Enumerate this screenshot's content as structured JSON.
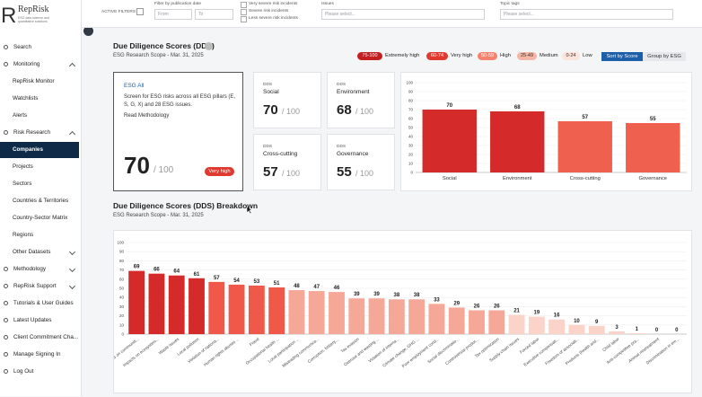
{
  "sidebar": {
    "logo": "RepRisk",
    "tagline": "ESG data science and quantitative solutions",
    "items": [
      {
        "label": "Search"
      },
      {
        "label": "Monitoring",
        "toggle": "up"
      },
      {
        "label": "RepRisk Monitor",
        "indent": true
      },
      {
        "label": "Watchlists",
        "indent": true
      },
      {
        "label": "Alerts",
        "indent": true
      },
      {
        "label": "Risk Research",
        "toggle": "up"
      },
      {
        "label": "Companies",
        "indent": true,
        "active": true
      },
      {
        "label": "Projects",
        "indent": true
      },
      {
        "label": "Sectors",
        "indent": true
      },
      {
        "label": "Countries & Territories",
        "indent": true
      },
      {
        "label": "Country-Sector Matrix",
        "indent": true
      },
      {
        "label": "Regions",
        "indent": true
      },
      {
        "label": "Other Datasets",
        "indent": true,
        "toggle": "down"
      },
      {
        "label": "Methodology",
        "toggle": "down"
      },
      {
        "label": "RepRisk Support",
        "toggle": "down"
      },
      {
        "label": "Tutorials & User Guides"
      },
      {
        "label": "Latest Updates"
      },
      {
        "label": "Client Commitment Cha..."
      },
      {
        "label": "Manage Signing In"
      },
      {
        "label": "Log Out"
      }
    ]
  },
  "filters": {
    "active": "ACTIVE FILTERS",
    "date_label": "Filter by publication date",
    "from": "From",
    "to": "To",
    "checkboxes": [
      "Very severe risk incidents",
      "Severe risk incidents",
      "Less severe risk incidents"
    ],
    "issues_label": "Issues",
    "issues_placeholder": "Please select...",
    "tags_label": "Topic tags",
    "tags_placeholder": "Please select..."
  },
  "main": {
    "title": "Due Diligence Scores (DDS)",
    "subtitle": "ESG Research Scope - Mar. 31, 2025",
    "legend": [
      {
        "range": "75-100",
        "label": "Extremely high",
        "color": "#c41e1e",
        "text_color": "#ffffff"
      },
      {
        "range": "60-74",
        "label": "Very high",
        "color": "#e0392f",
        "text_color": "#ffffff"
      },
      {
        "range": "50-59",
        "label": "High",
        "color": "#f4826e",
        "text_color": "#ffffff"
      },
      {
        "range": "25-49",
        "label": "Medium",
        "color": "#f6b6a6",
        "text_color": "#333333"
      },
      {
        "range": "0-24",
        "label": "Low",
        "color": "#fde3da",
        "text_color": "#333333"
      }
    ],
    "sort_button": "Sort by Score",
    "group_button": "Group by ESG",
    "esg_card": {
      "title": "ESG All",
      "description": "Screen for ESG risks across all ESG pillars (E, S, G, X) and 28 ESG issues.",
      "link": "Read Methodology",
      "score": 70,
      "max": "/ 100",
      "badge": "Very high"
    },
    "score_cards": [
      {
        "tag": "DDS",
        "name": "Social",
        "score": 70,
        "max": "/ 100"
      },
      {
        "tag": "DDS",
        "name": "Environment",
        "score": 68,
        "max": "/ 100"
      },
      {
        "tag": "DDS",
        "name": "Cross-cutting",
        "score": 57,
        "max": "/ 100"
      },
      {
        "tag": "DDS",
        "name": "Governance",
        "score": 55,
        "max": "/ 100"
      }
    ],
    "breakdown_title": "Due Diligence Scores (DDS) Breakdown",
    "breakdown_subtitle": "ESG Research Scope - Mar. 31, 2025"
  },
  "chart_data": [
    {
      "type": "bar",
      "categories": [
        "Social",
        "Environment",
        "Cross-cutting",
        "Governance"
      ],
      "values": [
        70,
        68,
        57,
        55
      ],
      "colors": [
        "#d42a2a",
        "#d42a2a",
        "#f0604e",
        "#f0604e"
      ],
      "ylim": [
        0,
        100
      ],
      "yticks": [
        0,
        10,
        20,
        30,
        40,
        50,
        60,
        70,
        80,
        90,
        100
      ],
      "grid": true
    },
    {
      "type": "bar",
      "categories": [
        "Impacts on communiti...",
        "Impacts on ecosystem...",
        "Waste issues",
        "Local pollution",
        "Violation of nationa...",
        "Human rights abuses ...",
        "Fraud",
        "Occupational health ...",
        "Local participation ...",
        "Misleading communica...",
        "Corruption, bribery,...",
        "Tax evasion",
        "Overuse and wasting ...",
        "Violation of interna...",
        "Climate change, GHG ...",
        "Poor employment cond...",
        "Social discriminatio...",
        "Controversial produc...",
        "Tax optimization",
        "Supply chain issues",
        "Forced labor",
        "Executive compensati...",
        "Freedom of associati...",
        "Products (health and...",
        "Child labor",
        "Anti-competitive pra...",
        "Animal mistreatment",
        "Discrimination in em..."
      ],
      "values": [
        69,
        66,
        64,
        61,
        57,
        54,
        53,
        51,
        48,
        47,
        46,
        39,
        39,
        38,
        38,
        33,
        29,
        26,
        26,
        21,
        19,
        16,
        10,
        9,
        3,
        1,
        0,
        0
      ],
      "colors": [
        "#d42a2a",
        "#d42a2a",
        "#d42a2a",
        "#d42a2a",
        "#f0584a",
        "#f0584a",
        "#f0584a",
        "#f0584a",
        "#f5a898",
        "#f5a898",
        "#f5a898",
        "#f5a898",
        "#f5a898",
        "#f5a898",
        "#f5a898",
        "#f5a898",
        "#f5a898",
        "#f5a898",
        "#f5a898",
        "#fbd3c9",
        "#fbd3c9",
        "#fbd3c9",
        "#fbd3c9",
        "#fbd3c9",
        "#fbd3c9",
        "#fbd3c9",
        "#fbd3c9",
        "#fbd3c9"
      ],
      "ylim": [
        0,
        100
      ],
      "yticks": [
        0,
        10,
        20,
        30,
        40,
        50,
        60,
        70,
        80,
        90,
        100
      ],
      "grid": true
    }
  ]
}
